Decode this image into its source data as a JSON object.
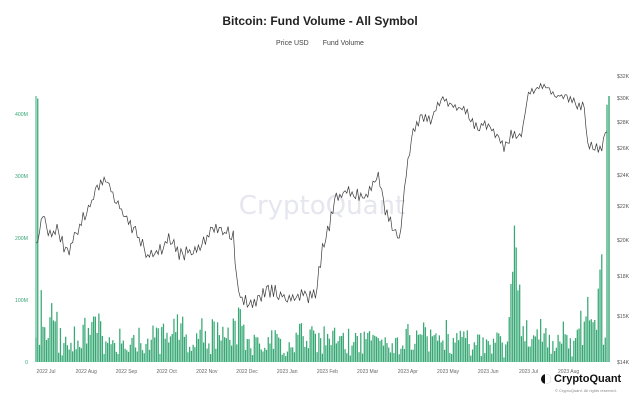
{
  "chart_data": {
    "type": "bar+line",
    "title": "Bitcoin: Fund Volume - All Symbol",
    "legend": [
      "Price USD",
      "Fund Volume"
    ],
    "watermark": "CryptoQuant",
    "brand": "CryptoQuant",
    "rights": "© CryptoQuant. All rights reserved.",
    "colors": {
      "volume": "#36a874",
      "price": "#3b3b3b",
      "axis_left": "#36a874",
      "axis_right": "#555555"
    },
    "x_ticks": [
      "2022 Jul",
      "2022 Aug",
      "2022 Sep",
      "2022 Oct",
      "2022 Nov",
      "2022 Dec",
      "2023 Jan",
      "2023 Feb",
      "2023 Mar",
      "2023 Apr",
      "2023 May",
      "2023 Jun",
      "2023 Jul",
      "2023 Aug"
    ],
    "left_axis": {
      "ticks": [
        "0",
        "100M",
        "200M",
        "300M",
        "400M"
      ],
      "range": [
        0,
        450000000
      ]
    },
    "right_axis": {
      "ticks": [
        "$14K",
        "$15K",
        "$18K",
        "$20K",
        "$22K",
        "$24K",
        "$26K",
        "$28K",
        "$30K",
        "$32K"
      ]
    },
    "price_keypoints": [
      [
        0,
        19800
      ],
      [
        4,
        21400
      ],
      [
        8,
        20200
      ],
      [
        12,
        20600
      ],
      [
        18,
        19300
      ],
      [
        24,
        20700
      ],
      [
        30,
        21900
      ],
      [
        36,
        23300
      ],
      [
        41,
        23600
      ],
      [
        46,
        22300
      ],
      [
        52,
        21300
      ],
      [
        58,
        20300
      ],
      [
        64,
        19100
      ],
      [
        70,
        19300
      ],
      [
        76,
        20100
      ],
      [
        82,
        19200
      ],
      [
        88,
        19300
      ],
      [
        94,
        19600
      ],
      [
        99,
        20400
      ],
      [
        104,
        20800
      ],
      [
        108,
        20400
      ],
      [
        113,
        20400
      ],
      [
        115,
        17800
      ],
      [
        118,
        16600
      ],
      [
        124,
        16100
      ],
      [
        130,
        16900
      ],
      [
        136,
        17100
      ],
      [
        142,
        16700
      ],
      [
        148,
        16600
      ],
      [
        152,
        16800
      ],
      [
        156,
        16700
      ],
      [
        160,
        16900
      ],
      [
        164,
        19500
      ],
      [
        168,
        20900
      ],
      [
        172,
        22500
      ],
      [
        178,
        23000
      ],
      [
        184,
        22700
      ],
      [
        190,
        22700
      ],
      [
        196,
        23900
      ],
      [
        200,
        21800
      ],
      [
        205,
        20600
      ],
      [
        208,
        19900
      ],
      [
        212,
        24100
      ],
      [
        216,
        27300
      ],
      [
        220,
        28300
      ],
      [
        226,
        28200
      ],
      [
        232,
        30000
      ],
      [
        238,
        29300
      ],
      [
        244,
        29100
      ],
      [
        248,
        28600
      ],
      [
        252,
        27600
      ],
      [
        258,
        27800
      ],
      [
        264,
        26900
      ],
      [
        268,
        26000
      ],
      [
        272,
        27000
      ],
      [
        278,
        26900
      ],
      [
        282,
        30300
      ],
      [
        286,
        30700
      ],
      [
        292,
        31200
      ],
      [
        296,
        30300
      ],
      [
        300,
        30200
      ],
      [
        306,
        30000
      ],
      [
        310,
        29200
      ],
      [
        314,
        29500
      ],
      [
        316,
        26200
      ],
      [
        320,
        26000
      ],
      [
        324,
        26100
      ],
      [
        327,
        27300
      ]
    ],
    "volume_keypoints": [
      [
        0,
        140
      ],
      [
        3,
        90
      ],
      [
        6,
        60
      ],
      [
        10,
        75
      ],
      [
        15,
        40
      ],
      [
        20,
        55
      ],
      [
        25,
        38
      ],
      [
        30,
        80
      ],
      [
        36,
        62
      ],
      [
        40,
        28
      ],
      [
        46,
        40
      ],
      [
        52,
        45
      ],
      [
        58,
        50
      ],
      [
        64,
        35
      ],
      [
        70,
        55
      ],
      [
        76,
        38
      ],
      [
        82,
        72
      ],
      [
        88,
        30
      ],
      [
        94,
        65
      ],
      [
        100,
        50
      ],
      [
        106,
        60
      ],
      [
        112,
        45
      ],
      [
        114,
        120
      ],
      [
        116,
        82
      ],
      [
        118,
        70
      ],
      [
        120,
        35
      ],
      [
        126,
        48
      ],
      [
        132,
        38
      ],
      [
        138,
        40
      ],
      [
        144,
        28
      ],
      [
        150,
        52
      ],
      [
        156,
        38
      ],
      [
        162,
        55
      ],
      [
        168,
        35
      ],
      [
        174,
        48
      ],
      [
        180,
        40
      ],
      [
        186,
        52
      ],
      [
        192,
        35
      ],
      [
        198,
        58
      ],
      [
        204,
        45
      ],
      [
        210,
        40
      ],
      [
        216,
        60
      ],
      [
        222,
        48
      ],
      [
        228,
        38
      ],
      [
        234,
        55
      ],
      [
        240,
        40
      ],
      [
        246,
        50
      ],
      [
        252,
        32
      ],
      [
        258,
        38
      ],
      [
        264,
        45
      ],
      [
        268,
        28
      ],
      [
        272,
        95
      ],
      [
        274,
        180
      ],
      [
        276,
        115
      ],
      [
        278,
        90
      ],
      [
        282,
        70
      ],
      [
        286,
        38
      ],
      [
        290,
        60
      ],
      [
        296,
        40
      ],
      [
        302,
        50
      ],
      [
        308,
        33
      ],
      [
        312,
        75
      ],
      [
        316,
        60
      ],
      [
        320,
        95
      ],
      [
        324,
        150
      ],
      [
        326,
        35
      ],
      [
        327,
        100
      ]
    ],
    "volume_spikes": [
      [
        1,
        425
      ],
      [
        274,
        220
      ],
      [
        316,
        105
      ],
      [
        327,
        415
      ]
    ]
  }
}
